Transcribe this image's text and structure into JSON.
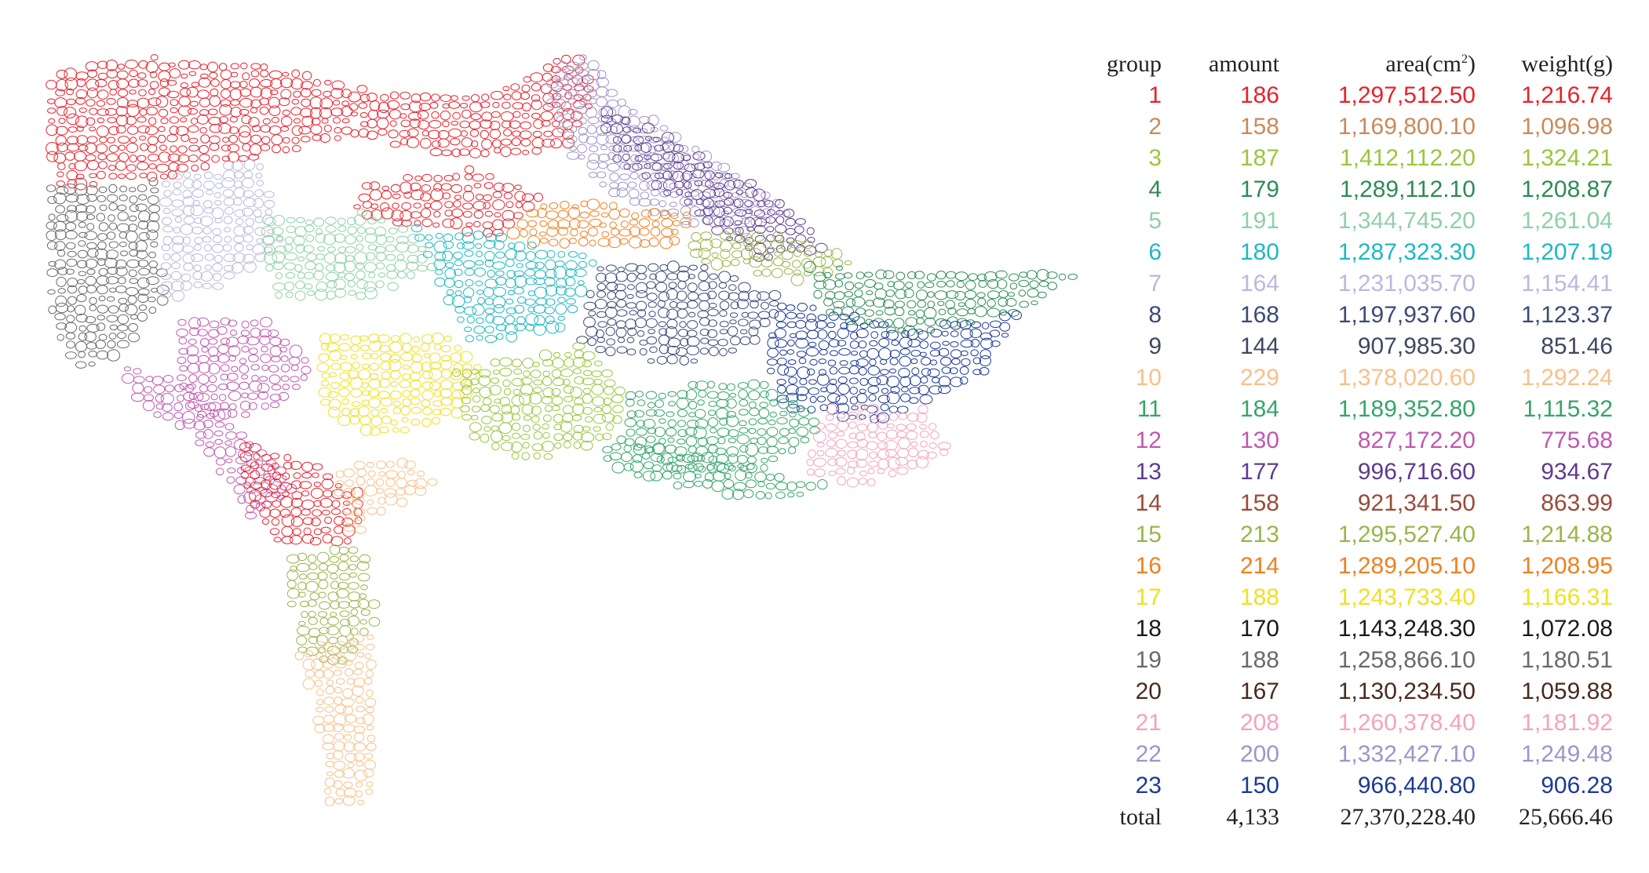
{
  "table": {
    "headers": {
      "group": "group",
      "amount": "amount",
      "area_base": "area(cm",
      "area_sup": "2",
      "area_close": ")",
      "weight": "weight(g)"
    },
    "rows": [
      {
        "group": "1",
        "amount": "186",
        "area": "1,297,512.50",
        "weight": "1,216.74",
        "color": "#e8212a"
      },
      {
        "group": "2",
        "amount": "158",
        "area": "1,169,800.10",
        "weight": "1,096.98",
        "color": "#c98a5a"
      },
      {
        "group": "3",
        "amount": "187",
        "area": "1,412,112.20",
        "weight": "1,324.21",
        "color": "#9bc53d"
      },
      {
        "group": "4",
        "amount": "179",
        "area": "1,289,112.10",
        "weight": "1,208.87",
        "color": "#2e8b57"
      },
      {
        "group": "5",
        "amount": "191",
        "area": "1,344,745.20",
        "weight": "1,261.04",
        "color": "#8fd0a8"
      },
      {
        "group": "6",
        "amount": "180",
        "area": "1,287,323.30",
        "weight": "1,207.19",
        "color": "#1fb8c0"
      },
      {
        "group": "7",
        "amount": "164",
        "area": "1,231,035.70",
        "weight": "1,154.41",
        "color": "#b9b9dc"
      },
      {
        "group": "8",
        "amount": "168",
        "area": "1,197,937.60",
        "weight": "1,123.37",
        "color": "#3c4a78"
      },
      {
        "group": "9",
        "amount": "144",
        "area": "907,985.30",
        "weight": "851.46",
        "color": "#404860"
      },
      {
        "group": "10",
        "amount": "229",
        "area": "1,378,020.60",
        "weight": "1,292.24",
        "color": "#f8c08a"
      },
      {
        "group": "11",
        "amount": "184",
        "area": "1,189,352.80",
        "weight": "1,115.32",
        "color": "#35a56a"
      },
      {
        "group": "12",
        "amount": "130",
        "area": "827,172.20",
        "weight": "775.68",
        "color": "#c058b0"
      },
      {
        "group": "13",
        "amount": "177",
        "area": "996,716.60",
        "weight": "934.67",
        "color": "#5d3c8e"
      },
      {
        "group": "14",
        "amount": "158",
        "area": "921,341.50",
        "weight": "863.99",
        "color": "#9a4a38"
      },
      {
        "group": "15",
        "amount": "213",
        "area": "1,295,527.40",
        "weight": "1,214.88",
        "color": "#9ab54a"
      },
      {
        "group": "16",
        "amount": "214",
        "area": "1,289,205.10",
        "weight": "1,208.95",
        "color": "#f08020"
      },
      {
        "group": "17",
        "amount": "188",
        "area": "1,243,733.40",
        "weight": "1,166.31",
        "color": "#f0e020"
      },
      {
        "group": "18",
        "amount": "170",
        "area": "1,143,248.30",
        "weight": "1,072.08",
        "color": "#1a1a1a"
      },
      {
        "group": "19",
        "amount": "188",
        "area": "1,258,866.10",
        "weight": "1,180.51",
        "color": "#6a6a6a"
      },
      {
        "group": "20",
        "amount": "167",
        "area": "1,130,234.50",
        "weight": "1,059.88",
        "color": "#4a2a1e"
      },
      {
        "group": "21",
        "amount": "208",
        "area": "1,260,378.40",
        "weight": "1,181.92",
        "color": "#f4a2c0"
      },
      {
        "group": "22",
        "amount": "200",
        "area": "1,332,427.10",
        "weight": "1,249.48",
        "color": "#a095c8"
      },
      {
        "group": "23",
        "amount": "150",
        "area": "966,440.80",
        "weight": "906.28",
        "color": "#1c3a96"
      }
    ],
    "total": {
      "label": "total",
      "amount": "4,133",
      "area": "27,370,228.40",
      "weight": "25,666.46"
    }
  },
  "figure": {
    "description_icon": "circle-packed-chair-mesh",
    "palette": [
      "#e8212a",
      "#c98a5a",
      "#9bc53d",
      "#2e8b57",
      "#8fd0a8",
      "#1fb8c0",
      "#b9b9dc",
      "#3c4a78",
      "#404860",
      "#f8c08a",
      "#35a56a",
      "#c058b0",
      "#5d3c8e",
      "#9a4a38",
      "#9ab54a",
      "#f08020",
      "#f0e020",
      "#1a1a1a",
      "#6a6a6a",
      "#4a2a1e",
      "#f4a2c0",
      "#a095c8",
      "#1c3a96"
    ]
  }
}
